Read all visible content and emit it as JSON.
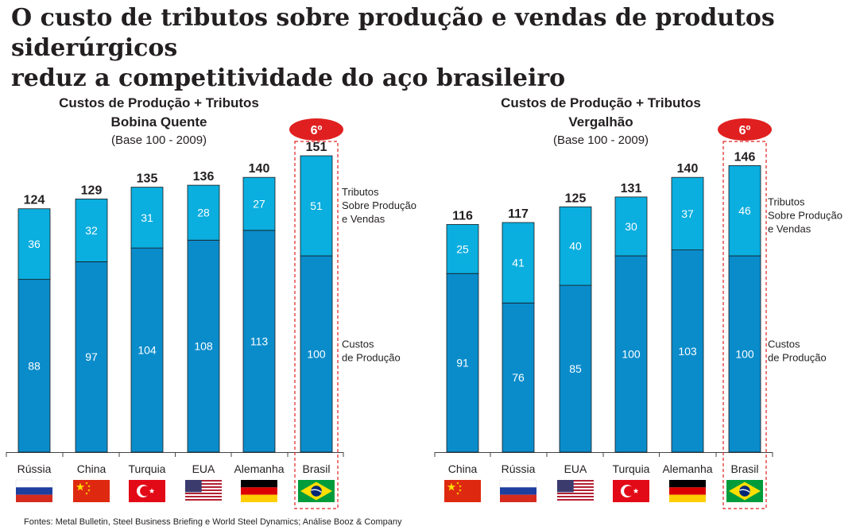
{
  "headline": {
    "line1": "O custo de tributos sobre produção e vendas de produtos siderúrgicos",
    "line2": "reduz a competitividade do aço brasileiro"
  },
  "source": "Fontes: Metal Bulletin, Steel Business Briefing e World Steel Dynamics; Análise Booz & Company",
  "colors": {
    "production": "#0a8ccb",
    "taxes": "#0aaedf",
    "highlight": "#e02020",
    "text": "#231f20"
  },
  "chart_data": [
    {
      "type": "bar",
      "stacked": true,
      "title": "Custos de Produção + Tributos",
      "subtitle": "Bobina Quente",
      "base_note": "(Base 100 - 2009)",
      "categories": [
        "Rússia",
        "China",
        "Turquia",
        "EUA",
        "Alemanha",
        "Brasil"
      ],
      "flags": [
        "russia-flag-icon",
        "china-flag-icon",
        "turkey-flag-icon",
        "usa-flag-icon",
        "germany-flag-icon",
        "brazil-flag-icon"
      ],
      "series": [
        {
          "name": "Custos de Produção",
          "legend_label": "Custos\nde Produção",
          "values": [
            88,
            97,
            104,
            108,
            113,
            100
          ]
        },
        {
          "name": "Tributos Sobre Produção e Vendas",
          "legend_label": "Tributos\nSobre Produção\ne Vendas",
          "values": [
            36,
            32,
            31,
            28,
            27,
            51
          ]
        }
      ],
      "totals": [
        124,
        129,
        135,
        136,
        140,
        151
      ],
      "highlight": {
        "category": "Brasil",
        "rank_label": "6º"
      }
    },
    {
      "type": "bar",
      "stacked": true,
      "title": "Custos de Produção + Tributos",
      "subtitle": "Vergalhão",
      "base_note": "(Base 100 - 2009)",
      "categories": [
        "China",
        "Rússia",
        "EUA",
        "Turquia",
        "Alemanha",
        "Brasil"
      ],
      "flags": [
        "china-flag-icon",
        "russia-flag-icon",
        "usa-flag-icon",
        "turkey-flag-icon",
        "germany-flag-icon",
        "brazil-flag-icon"
      ],
      "series": [
        {
          "name": "Custos de Produção",
          "legend_label": "Custos\nde Produção",
          "values": [
            91,
            76,
            85,
            100,
            103,
            100
          ]
        },
        {
          "name": "Tributos Sobre Produção e Vendas",
          "legend_label": "Tributos\nSobre Produção\ne Vendas",
          "values": [
            25,
            41,
            40,
            30,
            37,
            46
          ]
        }
      ],
      "totals": [
        116,
        117,
        125,
        131,
        140,
        146
      ],
      "highlight": {
        "category": "Brasil",
        "rank_label": "6º"
      }
    }
  ]
}
